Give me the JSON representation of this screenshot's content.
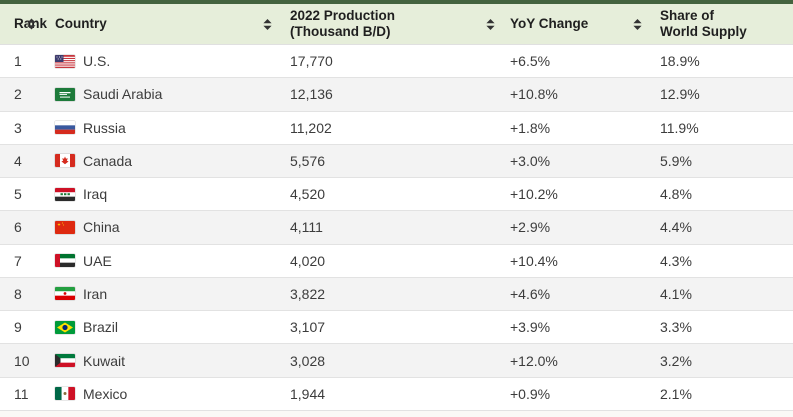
{
  "theme": {
    "top_accent_color": "#44633f",
    "header_bg": "#e6eeda",
    "header_text_color": "#1f1f1f",
    "body_text_color": "#3c3c3c",
    "row_alt_bg": "#f3f3f3",
    "separator_color": "#e2e2e2",
    "sort_icon_color": "#333333"
  },
  "table": {
    "columns": [
      {
        "id": "rank",
        "label": "Rank",
        "sortable": true
      },
      {
        "id": "country",
        "label": "Country",
        "sortable": true
      },
      {
        "id": "production",
        "label": "2022 Production",
        "label2": "(Thousand B/D)",
        "sortable": true
      },
      {
        "id": "yoy",
        "label": "YoY Change",
        "sortable": true
      },
      {
        "id": "share",
        "label": "Share of",
        "label2": "World Supply",
        "sortable": false
      }
    ],
    "rows": [
      {
        "rank": "1",
        "flag": "flag-us",
        "country": "U.S.",
        "production": "17,770",
        "yoy": "+6.5%",
        "share": "18.9%"
      },
      {
        "rank": "2",
        "flag": "flag-saudi-arabia",
        "country": "Saudi Arabia",
        "production": "12,136",
        "yoy": "+10.8%",
        "share": "12.9%"
      },
      {
        "rank": "3",
        "flag": "flag-russia",
        "country": "Russia",
        "production": "11,202",
        "yoy": "+1.8%",
        "share": "11.9%"
      },
      {
        "rank": "4",
        "flag": "flag-canada",
        "country": "Canada",
        "production": "5,576",
        "yoy": "+3.0%",
        "share": "5.9%"
      },
      {
        "rank": "5",
        "flag": "flag-iraq",
        "country": "Iraq",
        "production": "4,520",
        "yoy": "+10.2%",
        "share": "4.8%"
      },
      {
        "rank": "6",
        "flag": "flag-china",
        "country": "China",
        "production": "4,111",
        "yoy": "+2.9%",
        "share": "4.4%"
      },
      {
        "rank": "7",
        "flag": "flag-uae",
        "country": "UAE",
        "production": "4,020",
        "yoy": "+10.4%",
        "share": "4.3%"
      },
      {
        "rank": "8",
        "flag": "flag-iran",
        "country": "Iran",
        "production": "3,822",
        "yoy": "+4.6%",
        "share": "4.1%"
      },
      {
        "rank": "9",
        "flag": "flag-brazil",
        "country": "Brazil",
        "production": "3,107",
        "yoy": "+3.9%",
        "share": "3.3%"
      },
      {
        "rank": "10",
        "flag": "flag-kuwait",
        "country": "Kuwait",
        "production": "3,028",
        "yoy": "+12.0%",
        "share": "3.2%"
      },
      {
        "rank": "11",
        "flag": "flag-mexico",
        "country": "Mexico",
        "production": "1,944",
        "yoy": "+0.9%",
        "share": "2.1%"
      }
    ]
  },
  "chart_data": {
    "type": "table",
    "title": "",
    "columns": [
      "Rank",
      "Country",
      "2022 Production (Thousand B/D)",
      "YoY Change",
      "Share of World Supply"
    ],
    "rows": [
      [
        1,
        "U.S.",
        17770,
        "+6.5%",
        "18.9%"
      ],
      [
        2,
        "Saudi Arabia",
        12136,
        "+10.8%",
        "12.9%"
      ],
      [
        3,
        "Russia",
        11202,
        "+1.8%",
        "11.9%"
      ],
      [
        4,
        "Canada",
        5576,
        "+3.0%",
        "5.9%"
      ],
      [
        5,
        "Iraq",
        4520,
        "+10.2%",
        "4.8%"
      ],
      [
        6,
        "China",
        4111,
        "+2.9%",
        "4.4%"
      ],
      [
        7,
        "UAE",
        4020,
        "+10.4%",
        "4.3%"
      ],
      [
        8,
        "Iran",
        3822,
        "+4.6%",
        "4.1%"
      ],
      [
        9,
        "Brazil",
        3107,
        "+3.9%",
        "3.3%"
      ],
      [
        10,
        "Kuwait",
        3028,
        "+12.0%",
        "3.2%"
      ],
      [
        11,
        "Mexico",
        1944,
        "+0.9%",
        "2.1%"
      ]
    ]
  }
}
